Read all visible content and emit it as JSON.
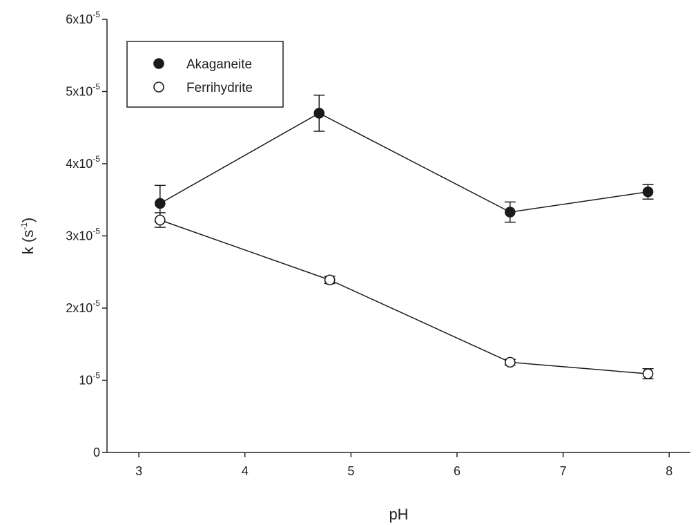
{
  "chart_data": {
    "type": "scatter",
    "title": "",
    "xlabel": "pH",
    "ylabel": {
      "base": "k (s",
      "sup": "-1",
      "tail": ")"
    },
    "xlim": [
      2.7,
      8.2
    ],
    "ylim": [
      0,
      6e-05
    ],
    "grid": false,
    "x_ticks": [
      {
        "value": 3,
        "label": "3"
      },
      {
        "value": 4,
        "label": "4"
      },
      {
        "value": 5,
        "label": "5"
      },
      {
        "value": 6,
        "label": "6"
      },
      {
        "value": 7,
        "label": "7"
      },
      {
        "value": 8,
        "label": "8"
      }
    ],
    "y_ticks": [
      {
        "value": 0,
        "base": "0",
        "sup": ""
      },
      {
        "value": 1e-05,
        "base": "10",
        "sup": "-5"
      },
      {
        "value": 2e-05,
        "base": "2x10",
        "sup": "-5"
      },
      {
        "value": 3e-05,
        "base": "3x10",
        "sup": "-5"
      },
      {
        "value": 4e-05,
        "base": "4x10",
        "sup": "-5"
      },
      {
        "value": 5e-05,
        "base": "5x10",
        "sup": "-5"
      },
      {
        "value": 6e-05,
        "base": "6x10",
        "sup": "-5"
      }
    ],
    "legend": {
      "placement": "top-left"
    },
    "series": [
      {
        "name": "Akaganeite",
        "marker": "filled-circle",
        "color": "#1a1a1a",
        "x": [
          3.2,
          4.7,
          6.5,
          7.8
        ],
        "y": [
          3.45e-05,
          4.7e-05,
          3.33e-05,
          3.61e-05
        ],
        "err": [
          2.5e-06,
          2.5e-06,
          1.4e-06,
          1e-06
        ]
      },
      {
        "name": "Ferrihydrite",
        "marker": "open-circle",
        "color": "#1a1a1a",
        "x": [
          3.2,
          4.8,
          6.5,
          7.8
        ],
        "y": [
          3.22e-05,
          2.39e-05,
          1.25e-05,
          1.09e-05
        ],
        "err": [
          1e-06,
          5e-07,
          4e-07,
          7e-07
        ]
      }
    ]
  }
}
